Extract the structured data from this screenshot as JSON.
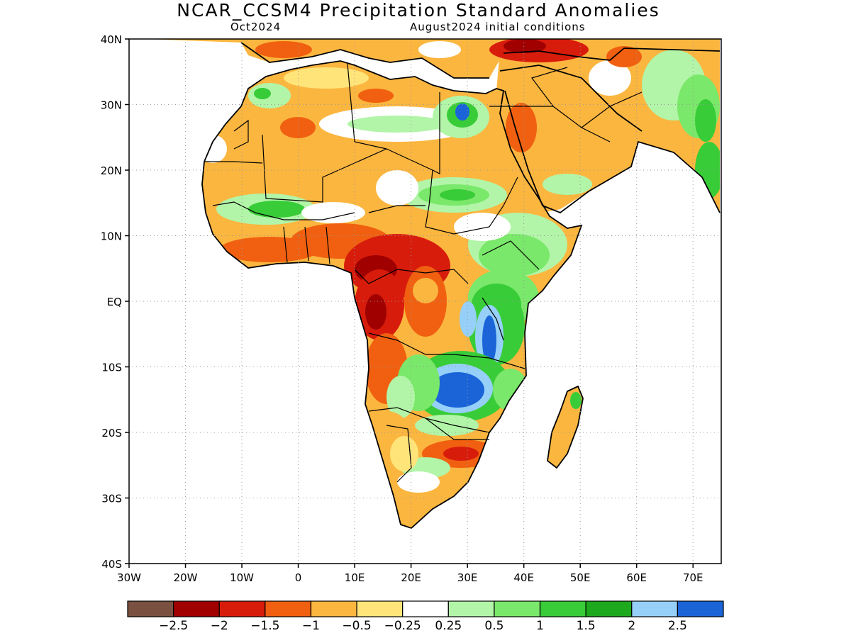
{
  "title": "NCAR_CCSM4 Precipitation Standard Anomalies",
  "subtitle_left": "Oct2024",
  "subtitle_right": "August2024 initial conditions",
  "lat_ticks": [
    "40N",
    "30N",
    "20N",
    "10N",
    "EQ",
    "10S",
    "20S",
    "30S",
    "40S"
  ],
  "lon_ticks": [
    "30W",
    "20W",
    "10W",
    "0",
    "10E",
    "20E",
    "30E",
    "40E",
    "50E",
    "60E",
    "70E"
  ],
  "colorbar": {
    "colors": [
      "#7a5040",
      "#a00000",
      "#d81c0c",
      "#f06010",
      "#fbb640",
      "#ffe47a",
      "#ffffff",
      "#b2f5a8",
      "#7ae86a",
      "#38cc38",
      "#1ea81e",
      "#96d0f8",
      "#1a64d8"
    ],
    "labels": [
      "−2.5",
      "−2",
      "−1.5",
      "−1",
      "−0.5",
      "−0.25",
      "0.25",
      "0.5",
      "1",
      "1.5",
      "2",
      "2.5"
    ]
  }
}
